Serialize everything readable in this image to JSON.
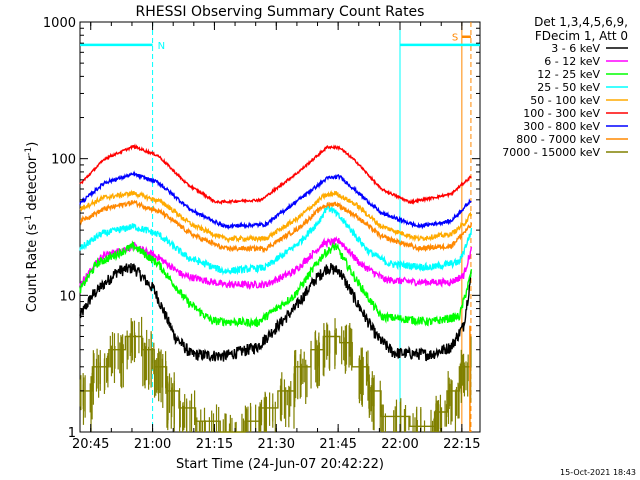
{
  "chart_data": {
    "type": "line",
    "title": "RHESSI Observing Summary Count Rates",
    "xlabel": "Start Time (24-Jun-07 20:42:22)",
    "ylabel_main": "Count Rate (s",
    "ylabel_sup1": "-1",
    "ylabel_mid": " detector",
    "ylabel_sup2": "-1",
    "ylabel_end": ")",
    "yscale": "log",
    "xlim_minutes": [
      0,
      97
    ],
    "ylim": [
      1,
      1000
    ],
    "x_ticks": [
      {
        "m": 2.6,
        "label": "20:45"
      },
      {
        "m": 17.6,
        "label": "21:00"
      },
      {
        "m": 32.6,
        "label": "21:15"
      },
      {
        "m": 47.6,
        "label": "21:30"
      },
      {
        "m": 62.6,
        "label": "21:45"
      },
      {
        "m": 77.6,
        "label": "22:00"
      },
      {
        "m": 92.6,
        "label": "22:15"
      }
    ],
    "y_ticks": [
      {
        "v": 1,
        "label": "1"
      },
      {
        "v": 10,
        "label": "10"
      },
      {
        "v": 100,
        "label": "100"
      },
      {
        "v": 1000,
        "label": "1000"
      }
    ],
    "legend_header": [
      "Det 1,3,4,5,6,9,",
      "FDecim 1, Att 0"
    ],
    "series": [
      {
        "name": "3 - 6 keV",
        "color": "#000000",
        "noise": 0.1,
        "points": [
          [
            0,
            7
          ],
          [
            3,
            10
          ],
          [
            9,
            15
          ],
          [
            13,
            16
          ],
          [
            18,
            11
          ],
          [
            23,
            5
          ],
          [
            27,
            3.7
          ],
          [
            35,
            3.6
          ],
          [
            43,
            4.2
          ],
          [
            52,
            8
          ],
          [
            57,
            13
          ],
          [
            60,
            16
          ],
          [
            63,
            15
          ],
          [
            67,
            9
          ],
          [
            72,
            5
          ],
          [
            76,
            3.8
          ],
          [
            85,
            3.7
          ],
          [
            90,
            4.2
          ],
          [
            93,
            6
          ],
          [
            95,
            15
          ]
        ]
      },
      {
        "name": "6 - 12 keV",
        "color": "#ff00ff",
        "noise": 0.06,
        "points": [
          [
            0,
            12
          ],
          [
            5,
            19
          ],
          [
            13,
            23
          ],
          [
            19,
            19
          ],
          [
            25,
            14
          ],
          [
            35,
            12
          ],
          [
            45,
            12
          ],
          [
            52,
            15
          ],
          [
            59,
            24
          ],
          [
            63,
            25
          ],
          [
            68,
            17
          ],
          [
            74,
            13
          ],
          [
            82,
            12.5
          ],
          [
            90,
            12.5
          ],
          [
            93,
            14
          ],
          [
            95,
            22
          ]
        ]
      },
      {
        "name": "12 - 25 keV",
        "color": "#00ff00",
        "noise": 0.07,
        "points": [
          [
            0,
            11
          ],
          [
            4,
            17
          ],
          [
            13,
            23
          ],
          [
            19,
            17
          ],
          [
            26,
            9
          ],
          [
            32,
            6.5
          ],
          [
            43,
            6.3
          ],
          [
            52,
            10
          ],
          [
            59,
            20
          ],
          [
            62,
            23
          ],
          [
            67,
            13
          ],
          [
            73,
            7
          ],
          [
            85,
            6.4
          ],
          [
            92,
            7
          ],
          [
            95,
            15
          ]
        ]
      },
      {
        "name": "25 - 50 keV",
        "color": "#00ffff",
        "noise": 0.06,
        "points": [
          [
            0,
            22
          ],
          [
            5,
            28
          ],
          [
            13,
            32
          ],
          [
            19,
            28
          ],
          [
            26,
            19
          ],
          [
            35,
            15
          ],
          [
            45,
            16
          ],
          [
            53,
            24
          ],
          [
            58,
            35
          ],
          [
            60,
            45
          ],
          [
            62,
            40
          ],
          [
            65,
            32
          ],
          [
            70,
            21
          ],
          [
            75,
            17
          ],
          [
            85,
            16
          ],
          [
            92,
            17.5
          ],
          [
            95,
            30
          ]
        ]
      },
      {
        "name": "50 - 100 keV",
        "color": "#ffaa00",
        "noise": 0.04,
        "points": [
          [
            0,
            43
          ],
          [
            6,
            52
          ],
          [
            13,
            56
          ],
          [
            20,
            48
          ],
          [
            27,
            33
          ],
          [
            35,
            26
          ],
          [
            45,
            26
          ],
          [
            53,
            37
          ],
          [
            59,
            53
          ],
          [
            62,
            56
          ],
          [
            67,
            46
          ],
          [
            73,
            32
          ],
          [
            82,
            26
          ],
          [
            90,
            28
          ],
          [
            93,
            33
          ],
          [
            95,
            40
          ]
        ]
      },
      {
        "name": "100 - 300 keV",
        "color": "#ff0000",
        "noise": 0.02,
        "points": [
          [
            0,
            65
          ],
          [
            6,
            100
          ],
          [
            13,
            123
          ],
          [
            19,
            105
          ],
          [
            26,
            65
          ],
          [
            33,
            48
          ],
          [
            44,
            50
          ],
          [
            53,
            80
          ],
          [
            60,
            122
          ],
          [
            63,
            120
          ],
          [
            67,
            95
          ],
          [
            73,
            60
          ],
          [
            80,
            48
          ],
          [
            90,
            55
          ],
          [
            95,
            75
          ]
        ]
      },
      {
        "name": "300 - 800 keV",
        "color": "#0000ff",
        "noise": 0.03,
        "points": [
          [
            0,
            47
          ],
          [
            6,
            67
          ],
          [
            13,
            77
          ],
          [
            19,
            67
          ],
          [
            27,
            42
          ],
          [
            35,
            32
          ],
          [
            45,
            33
          ],
          [
            53,
            50
          ],
          [
            60,
            72
          ],
          [
            63,
            74
          ],
          [
            67,
            58
          ],
          [
            73,
            40
          ],
          [
            82,
            32
          ],
          [
            90,
            35
          ],
          [
            95,
            50
          ]
        ]
      },
      {
        "name": "800 - 7000 keV",
        "color": "#ff8800",
        "noise": 0.04,
        "points": [
          [
            0,
            35
          ],
          [
            6,
            43
          ],
          [
            13,
            48
          ],
          [
            20,
            40
          ],
          [
            27,
            28
          ],
          [
            35,
            22
          ],
          [
            45,
            22
          ],
          [
            53,
            31
          ],
          [
            59,
            45
          ],
          [
            62,
            47
          ],
          [
            67,
            38
          ],
          [
            73,
            27
          ],
          [
            82,
            22
          ],
          [
            90,
            23
          ],
          [
            95,
            33
          ]
        ]
      },
      {
        "name": "7000 - 15000 keV",
        "color": "#808000",
        "noise": 0.0,
        "step": true,
        "points": [
          [
            0,
            2
          ],
          [
            3,
            3
          ],
          [
            7,
            4
          ],
          [
            11,
            5
          ],
          [
            15,
            4
          ],
          [
            18,
            3
          ],
          [
            21,
            2
          ],
          [
            24,
            1.5
          ],
          [
            28,
            1.2
          ],
          [
            34,
            1
          ],
          [
            40,
            1.2
          ],
          [
            44,
            1.5
          ],
          [
            48,
            2
          ],
          [
            52,
            3
          ],
          [
            56,
            4
          ],
          [
            59,
            5
          ],
          [
            63,
            4.5
          ],
          [
            66,
            3
          ],
          [
            70,
            2
          ],
          [
            73,
            1.3
          ],
          [
            80,
            1.1
          ],
          [
            86,
            1.4
          ],
          [
            89,
            2
          ],
          [
            92,
            3
          ],
          [
            94.8,
            5
          ]
        ]
      }
    ],
    "annotations": [
      {
        "text": "N",
        "color": "#00ffff"
      },
      {
        "text": "S",
        "color": "#ff8800"
      }
    ],
    "intervals": {
      "night": [
        [
          0,
          17.6
        ],
        [
          77.6,
          97
        ]
      ],
      "saa": [
        [
          92.6,
          94.8
        ]
      ]
    },
    "vlines": [
      {
        "m": 17.6,
        "color": "#00ffff",
        "dash": true
      },
      {
        "m": 77.6,
        "color": "#00ffff",
        "dash": false
      },
      {
        "m": 92.6,
        "color": "#ff8800",
        "dash": false
      },
      {
        "m": 94.8,
        "color": "#ff8800",
        "dash": true
      }
    ]
  },
  "footer": {
    "timestamp": "15-Oct-2021 18:43"
  },
  "colors": {
    "background": "#000000",
    "plot_bg": "#ffffff",
    "axes": "#000000"
  }
}
